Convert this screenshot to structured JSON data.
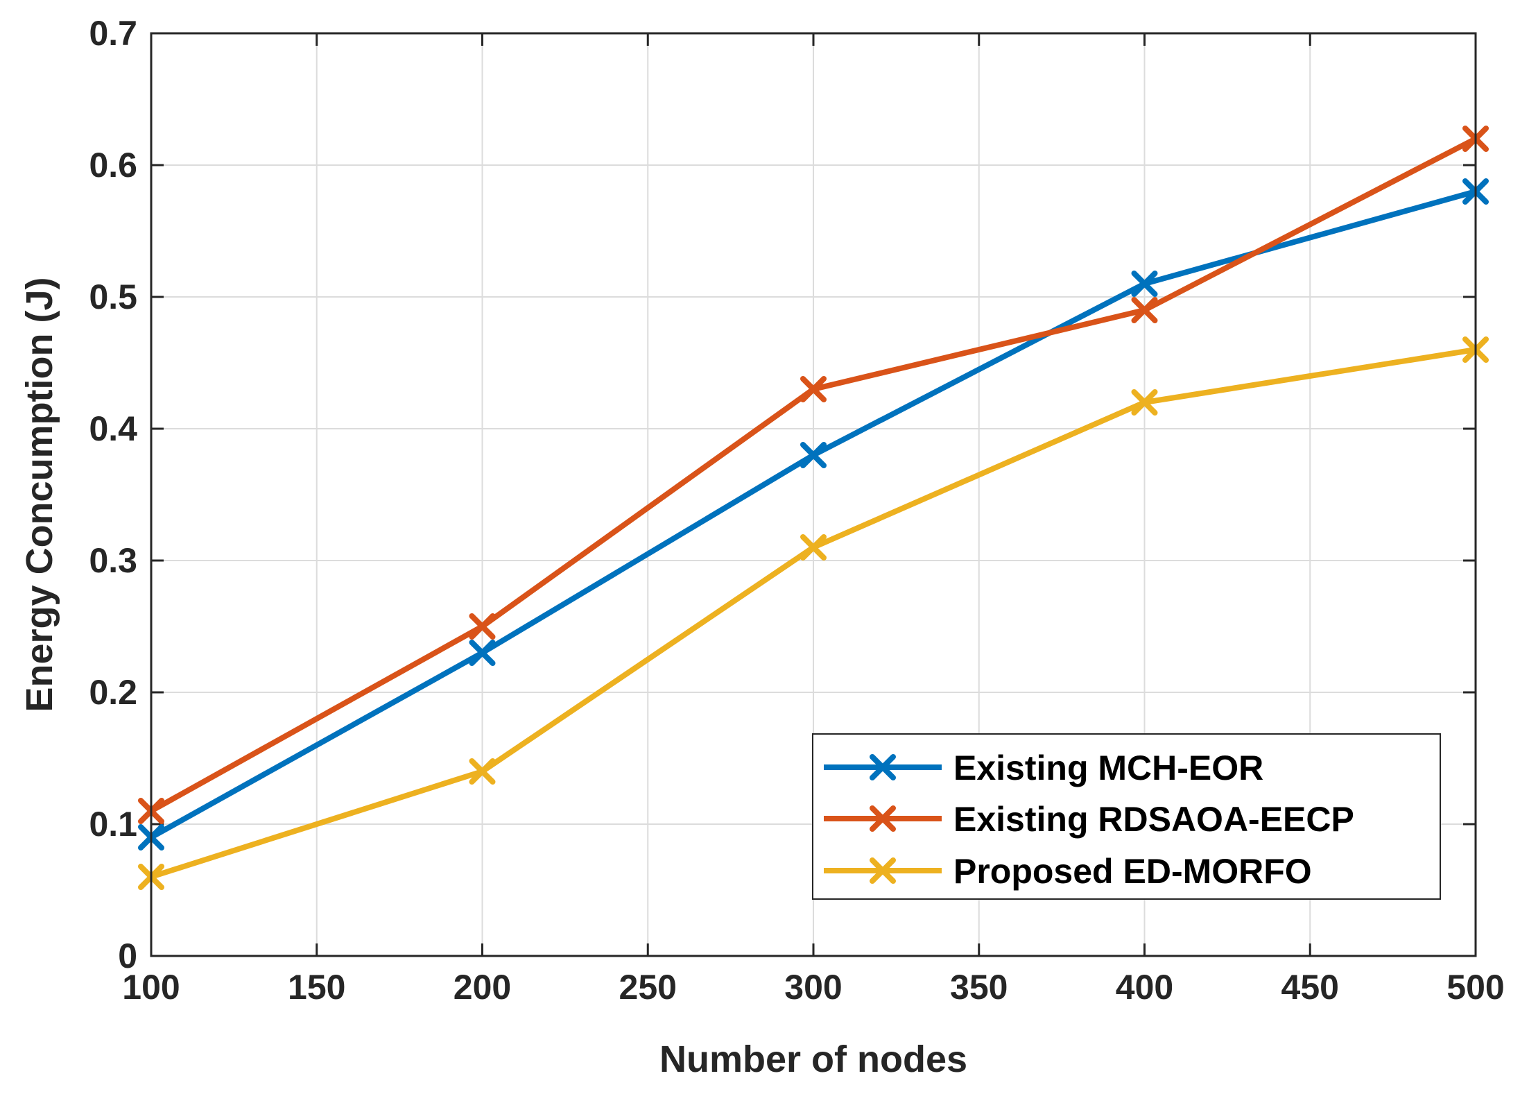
{
  "chart_data": {
    "type": "line",
    "title": "",
    "xlabel": "Number of nodes",
    "ylabel": "Energy Concumption (J)",
    "xlim": [
      100,
      500
    ],
    "ylim": [
      0,
      0.7
    ],
    "grid": true,
    "legend_position": "bottom-right",
    "x": [
      100,
      200,
      300,
      400,
      500
    ],
    "xticks": [
      "100",
      "150",
      "200",
      "250",
      "300",
      "350",
      "400",
      "450",
      "500"
    ],
    "xtick_values": [
      100,
      150,
      200,
      250,
      300,
      350,
      400,
      450,
      500
    ],
    "yticks": [
      "0",
      "0.1",
      "0.2",
      "0.3",
      "0.4",
      "0.5",
      "0.6",
      "0.7"
    ],
    "ytick_values": [
      0,
      0.1,
      0.2,
      0.3,
      0.4,
      0.5,
      0.6,
      0.7
    ],
    "series": [
      {
        "name": "Existing MCH-EOR",
        "color": "#0072BD",
        "marker": "x",
        "values": [
          0.09,
          0.23,
          0.38,
          0.51,
          0.58
        ]
      },
      {
        "name": "Existing RDSAOA-EECP",
        "color": "#D95319",
        "marker": "x",
        "values": [
          0.11,
          0.25,
          0.43,
          0.49,
          0.62
        ]
      },
      {
        "name": "Proposed ED-MORFO",
        "color": "#EDB120",
        "marker": "x",
        "values": [
          0.06,
          0.14,
          0.31,
          0.42,
          0.46
        ]
      }
    ]
  }
}
